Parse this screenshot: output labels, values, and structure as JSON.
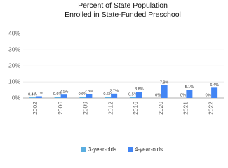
{
  "chart_data": {
    "type": "bar",
    "title": [
      "Percent of State Population",
      "Enrolled in State-Funded Preschool"
    ],
    "categories": [
      "2002",
      "2006",
      "2009",
      "2012",
      "2016",
      "2020",
      "2021",
      "2022"
    ],
    "series": [
      {
        "name": "3-year-olds",
        "color": "#5aaee0",
        "values": [
          0.4,
          0.6,
          0.6,
          0.6,
          0.5,
          0,
          0,
          0
        ],
        "value_labels": [
          "0.4%",
          "0.6%",
          "0.6%",
          "0.6%",
          "0.5%",
          "0%",
          "0%",
          "0%"
        ]
      },
      {
        "name": "4-year-olds",
        "color": "#4285f4",
        "values": [
          1.1,
          2.1,
          2.3,
          2.7,
          3.8,
          7.9,
          5.1,
          6.4
        ],
        "value_labels": [
          "1.1%",
          "2.1%",
          "2.3%",
          "2.7%",
          "3.8%",
          "7.9%",
          "5.1%",
          "6.4%"
        ]
      }
    ],
    "ylim": [
      0,
      45
    ],
    "yticks": [
      {
        "value": 0,
        "label": "0%"
      },
      {
        "value": 10,
        "label": "10%"
      },
      {
        "value": 20,
        "label": "20%"
      },
      {
        "value": 30,
        "label": "30%"
      },
      {
        "value": 40,
        "label": "40%"
      }
    ],
    "grid": true
  }
}
